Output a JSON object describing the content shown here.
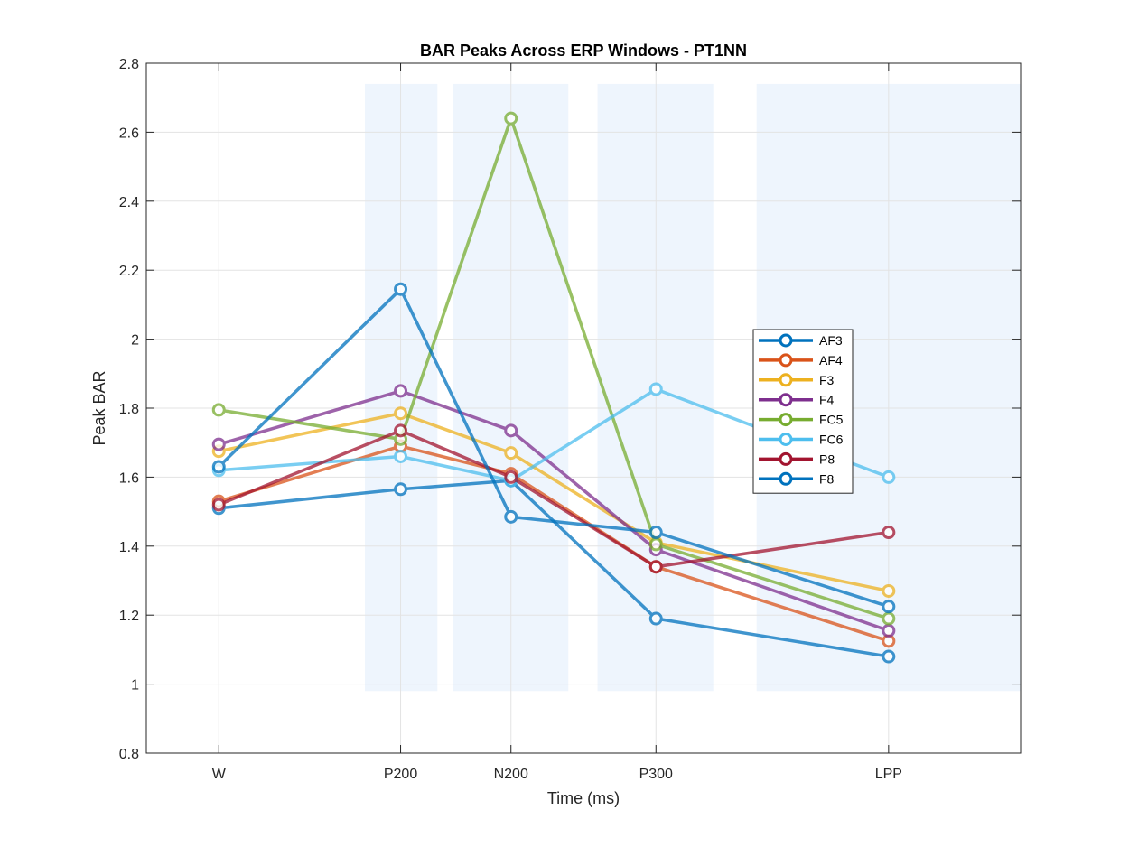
{
  "chart_data": {
    "type": "line",
    "title": "BAR Peaks Across ERP Windows - PT1NN",
    "xlabel": "Time (ms)",
    "ylabel": "Peak BAR",
    "x_ticks": [
      {
        "label": "W",
        "pos": 0
      },
      {
        "label": "P200",
        "pos": 1.68
      },
      {
        "label": "N200",
        "pos": 2.7
      },
      {
        "label": "P300",
        "pos": 4.04
      },
      {
        "label": "LPP",
        "pos": 6.19
      }
    ],
    "xlim": [
      -0.67,
      7.41
    ],
    "ylim": [
      0.8,
      2.8
    ],
    "y_ticks": [
      0.8,
      1,
      1.2,
      1.4,
      1.6,
      1.8,
      2,
      2.2,
      2.4,
      2.6,
      2.8
    ],
    "grid": true,
    "legend_position": "center-right",
    "shaded_windows": [
      {
        "x0": 1.35,
        "x1": 2.02,
        "y0": 0.98,
        "y1": 2.74
      },
      {
        "x0": 2.16,
        "x1": 3.23,
        "y0": 0.98,
        "y1": 2.74
      },
      {
        "x0": 3.5,
        "x1": 4.57,
        "y0": 0.98,
        "y1": 2.74
      },
      {
        "x0": 4.97,
        "x1": 7.41,
        "y0": 0.98,
        "y1": 2.74
      }
    ],
    "shade_color": "#eef5fd",
    "series": [
      {
        "name": "AF3",
        "color": "#0072bd",
        "values": [
          1.51,
          1.565,
          1.59,
          1.19,
          1.08
        ]
      },
      {
        "name": "AF4",
        "color": "#d95319",
        "values": [
          1.53,
          1.69,
          1.61,
          1.34,
          1.125
        ]
      },
      {
        "name": "F3",
        "color": "#edb120",
        "values": [
          1.675,
          1.785,
          1.67,
          1.41,
          1.27
        ]
      },
      {
        "name": "F4",
        "color": "#7e2f8e",
        "values": [
          1.695,
          1.85,
          1.735,
          1.39,
          1.155
        ]
      },
      {
        "name": "FC5",
        "color": "#77ac30",
        "values": [
          1.795,
          1.71,
          2.64,
          1.405,
          1.19
        ]
      },
      {
        "name": "FC6",
        "color": "#4dbeee",
        "values": [
          1.62,
          1.66,
          1.59,
          1.855,
          1.6
        ]
      },
      {
        "name": "P8",
        "color": "#a2142f",
        "values": [
          1.52,
          1.735,
          1.6,
          1.34,
          1.44
        ]
      },
      {
        "name": "F8",
        "color": "#0072bd",
        "values": [
          1.63,
          2.145,
          1.485,
          1.44,
          1.225
        ]
      }
    ]
  }
}
